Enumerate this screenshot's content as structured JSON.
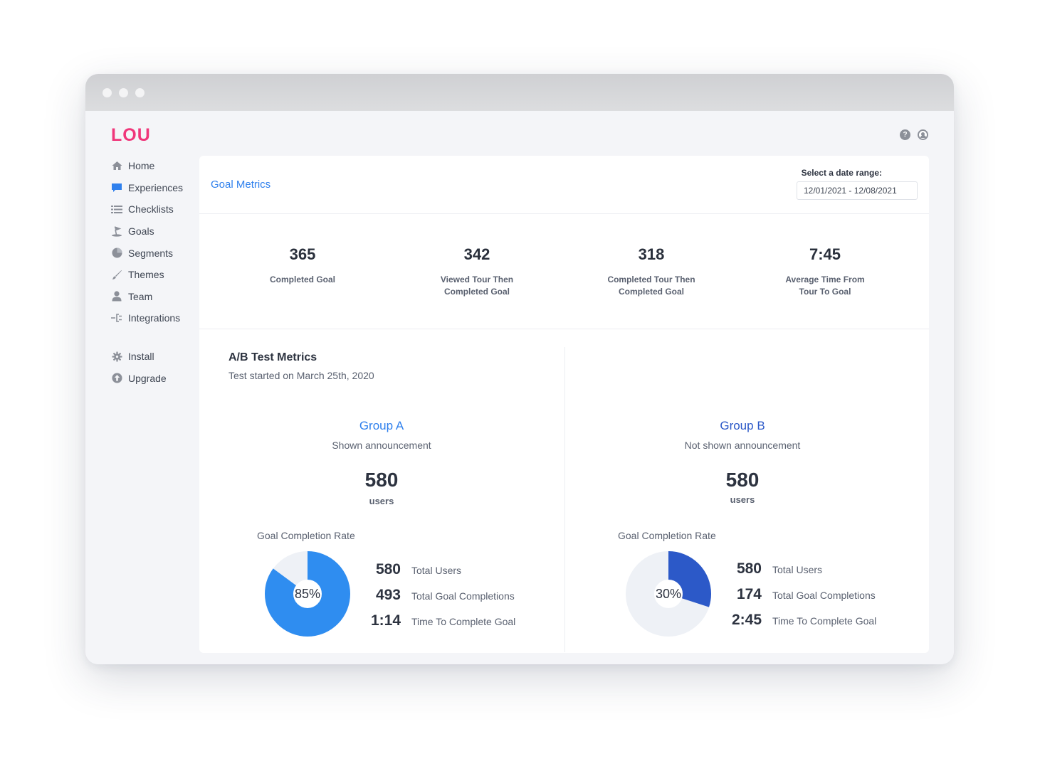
{
  "app": {
    "logo": "LOU"
  },
  "sidebar": {
    "items": [
      {
        "label": "Home",
        "icon": "home-icon"
      },
      {
        "label": "Experiences",
        "icon": "chat-icon"
      },
      {
        "label": "Checklists",
        "icon": "list-icon"
      },
      {
        "label": "Goals",
        "icon": "golf-flag-icon"
      },
      {
        "label": "Segments",
        "icon": "pie-chart-icon"
      },
      {
        "label": "Themes",
        "icon": "brush-icon"
      },
      {
        "label": "Team",
        "icon": "user-icon"
      },
      {
        "label": "Integrations",
        "icon": "plug-icon"
      }
    ],
    "secondary": [
      {
        "label": "Install",
        "icon": "gear-icon"
      },
      {
        "label": "Upgrade",
        "icon": "upgrade-arrow-icon"
      }
    ]
  },
  "header": {
    "title": "Goal Metrics",
    "date_label": "Select a date range:",
    "date_value": "12/01/2021 - 12/08/2021"
  },
  "stats": [
    {
      "value": "365",
      "label": "Completed Goal"
    },
    {
      "value": "342",
      "label": "Viewed Tour Then Completed Goal"
    },
    {
      "value": "318",
      "label": "Completed Tour Then Completed Goal"
    },
    {
      "value": "7:45",
      "label": "Average Time From Tour To Goal"
    }
  ],
  "ab": {
    "title": "A/B Test Metrics",
    "subtitle": "Test started on March 25th, 2020",
    "groups": [
      {
        "title": "Group A",
        "subtitle": "Shown announcement",
        "users": "580",
        "users_label": "users",
        "rate_label": "Goal Completion Rate",
        "rate_text": "85%",
        "rate": 0.85,
        "color": "#2f8df0",
        "track_color": "#eef1f6",
        "metrics": [
          {
            "value": "580",
            "label": "Total Users"
          },
          {
            "value": "493",
            "label": "Total Goal Completions"
          },
          {
            "value": "1:14",
            "label": "Time To Complete Goal"
          }
        ]
      },
      {
        "title": "Group B",
        "subtitle": "Not shown announcement",
        "users": "580",
        "users_label": "users",
        "rate_label": "Goal Completion Rate",
        "rate_text": "30%",
        "rate": 0.3,
        "color": "#2c59c8",
        "track_color": "#eef1f6",
        "metrics": [
          {
            "value": "580",
            "label": "Total Users"
          },
          {
            "value": "174",
            "label": "Total Goal Completions"
          },
          {
            "value": "2:45",
            "label": "Time To Complete Goal"
          }
        ]
      }
    ]
  }
}
